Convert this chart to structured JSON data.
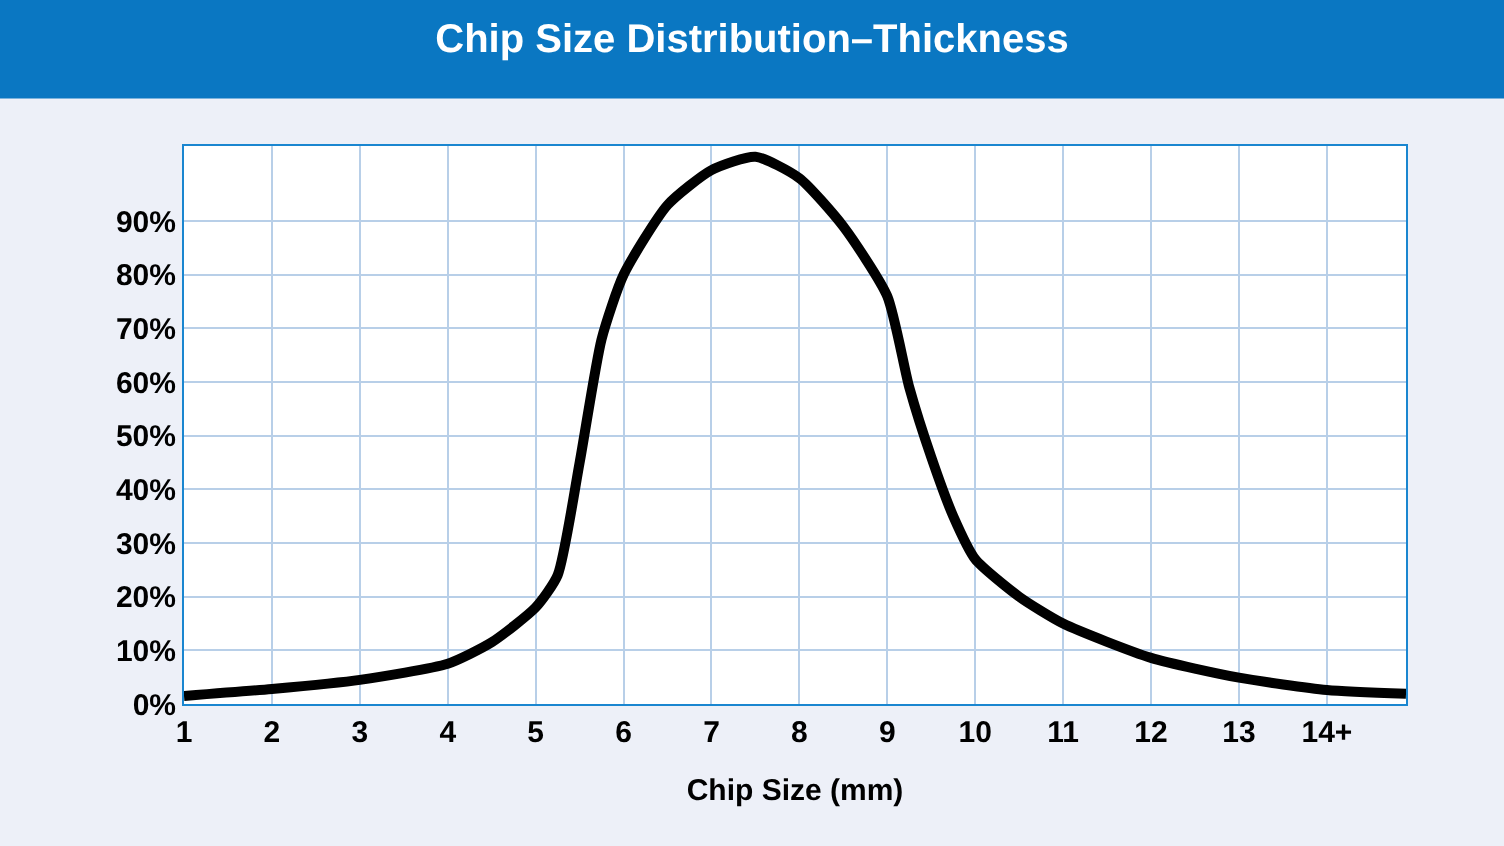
{
  "chart_data": {
    "type": "line",
    "title": "Chip Size Distribution–Thickness",
    "xlabel": "Chip Size (mm)",
    "x": [
      1,
      2,
      3,
      4,
      4.5,
      5,
      5.25,
      5.5,
      5.75,
      6,
      6.5,
      7,
      7.5,
      8,
      8.5,
      9,
      9.25,
      9.5,
      9.75,
      10,
      10.5,
      11,
      12,
      13,
      14,
      14.9
    ],
    "series": [
      {
        "color": "#000000",
        "values": [
          1.5,
          2.8,
          4.5,
          7.5,
          11.5,
          18,
          24,
          45,
          68,
          80,
          93,
          99.5,
          102,
          98,
          89,
          76,
          59,
          46,
          35,
          27,
          20,
          15,
          8.6,
          4.9,
          2.6,
          1.9
        ]
      }
    ],
    "xlim": [
      1,
      14.9
    ],
    "xticks": [
      1,
      2,
      3,
      4,
      5,
      6,
      7,
      8,
      9,
      10,
      11,
      12,
      13,
      {
        "value": 14,
        "label": "14+"
      }
    ],
    "ylim": [
      0,
      104
    ],
    "yticks": [
      {
        "value": 0,
        "label": "0%"
      },
      {
        "value": 10,
        "label": "10%"
      },
      {
        "value": 20,
        "label": "20%"
      },
      {
        "value": 30,
        "label": "30%"
      },
      {
        "value": 40,
        "label": "40%"
      },
      {
        "value": 50,
        "label": "50%"
      },
      {
        "value": 60,
        "label": "60%"
      },
      {
        "value": 70,
        "label": "70%"
      },
      {
        "value": 80,
        "label": "80%"
      },
      {
        "value": 90,
        "label": "90%"
      }
    ],
    "grid": true,
    "line_style": "solid",
    "marker": "none"
  }
}
